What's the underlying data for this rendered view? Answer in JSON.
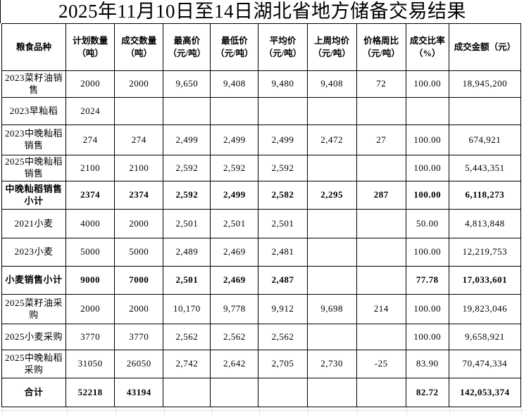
{
  "title": "2025年11月10日至14日湖北省地方储备交易结果",
  "table": {
    "columns": [
      "粮食品种",
      "计划数量（吨）",
      "成交数量（吨）",
      "最高价（元/吨）",
      "最低价（元/吨）",
      "平均价（元/吨）",
      "上周均价（元/吨）",
      "价格周比（元/吨）",
      "成交比率（%）",
      "成交金额（元）"
    ],
    "rows": [
      {
        "bold": false,
        "cells": [
          "2023菜籽油销售",
          "2000",
          "2000",
          "9,650",
          "9,408",
          "9,480",
          "9,408",
          "72",
          "100.00",
          "18,945,200"
        ]
      },
      {
        "bold": false,
        "cells": [
          "2023早籼稻",
          "2024",
          "",
          "",
          "",
          "",
          "",
          "",
          "",
          ""
        ]
      },
      {
        "bold": false,
        "cells": [
          "2023中晚籼稻销售",
          "274",
          "274",
          "2,499",
          "2,499",
          "2,499",
          "2,472",
          "27",
          "100.00",
          "674,921"
        ]
      },
      {
        "bold": false,
        "cells": [
          "2025中晚籼稻销售",
          "2100",
          "2100",
          "2,592",
          "2,592",
          "2,592",
          "",
          "",
          "100.00",
          "5,443,351"
        ]
      },
      {
        "bold": true,
        "cells": [
          "中晚籼稻销售小计",
          "2374",
          "2374",
          "2,592",
          "2,499",
          "2,582",
          "2,295",
          "287",
          "100.00",
          "6,118,273"
        ]
      },
      {
        "bold": false,
        "cells": [
          "2021小麦",
          "4000",
          "2000",
          "2,501",
          "2,501",
          "2,501",
          "",
          "",
          "50.00",
          "4,813,848"
        ]
      },
      {
        "bold": false,
        "cells": [
          "2023小麦",
          "5000",
          "5000",
          "2,489",
          "2,469",
          "2,481",
          "",
          "",
          "100.00",
          "12,219,753"
        ]
      },
      {
        "bold": true,
        "cells": [
          "小麦销售小计",
          "9000",
          "7000",
          "2,501",
          "2,469",
          "2,487",
          "",
          "",
          "77.78",
          "17,033,601"
        ]
      },
      {
        "bold": false,
        "cells": [
          "2025菜籽油采购",
          "2000",
          "2000",
          "10,170",
          "9,778",
          "9,912",
          "9,698",
          "214",
          "100.00",
          "19,823,046"
        ]
      },
      {
        "bold": false,
        "cells": [
          "2025小麦采购",
          "3770",
          "3770",
          "2,562",
          "2,562",
          "2,562",
          "",
          "",
          "100.00",
          "9,658,921"
        ]
      },
      {
        "bold": false,
        "cells": [
          "2025中晚籼稻采购",
          "31050",
          "26050",
          "2,742",
          "2,642",
          "2,705",
          "2,730",
          "-25",
          "83.90",
          "70,474,334"
        ]
      },
      {
        "bold": true,
        "cells": [
          "合计",
          "52218",
          "43194",
          "",
          "",
          "",
          "",
          "",
          "82.72",
          "142,053,374"
        ]
      }
    ]
  }
}
